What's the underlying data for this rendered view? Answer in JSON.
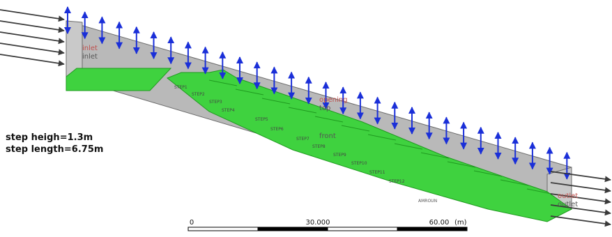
{
  "annotations": {
    "step_height": "step heigh=1.3m",
    "step_length": "step length=6.75m"
  },
  "labels": {
    "inlet_top": "inlet",
    "inlet_bottom": "inlet",
    "opening": "opening",
    "top": "top",
    "front": "front",
    "outlet_top": "outlet",
    "outlet_bottom": "outlet",
    "amroun": "AMROUN",
    "steps": [
      "STEP1",
      "STEP2",
      "STEP3",
      "STEP4",
      "STEP5",
      "STEP6",
      "STEP7",
      "STEP8",
      "STEP9",
      "STEP10",
      "STEP11",
      "STEP12"
    ]
  },
  "scale_bar": {
    "ticks": [
      "0",
      "30.000",
      "60.00"
    ],
    "unit": "(m)"
  },
  "colors": {
    "wall": "#b9b9b9",
    "wall_edge": "#6b6b6b",
    "floor": "#3fd23f",
    "floor_dark": "#1f9a1f",
    "opening_arrows": "#1a2fd8",
    "inlet_arrows": "#3a3a3a",
    "label_red": "#c0504d",
    "label_grey": "#555555"
  },
  "icons": {
    "opening_arrow": "double-headed-vertical-arrow",
    "inlet_arrow": "right-arrow",
    "outlet_arrow": "right-arrow"
  }
}
